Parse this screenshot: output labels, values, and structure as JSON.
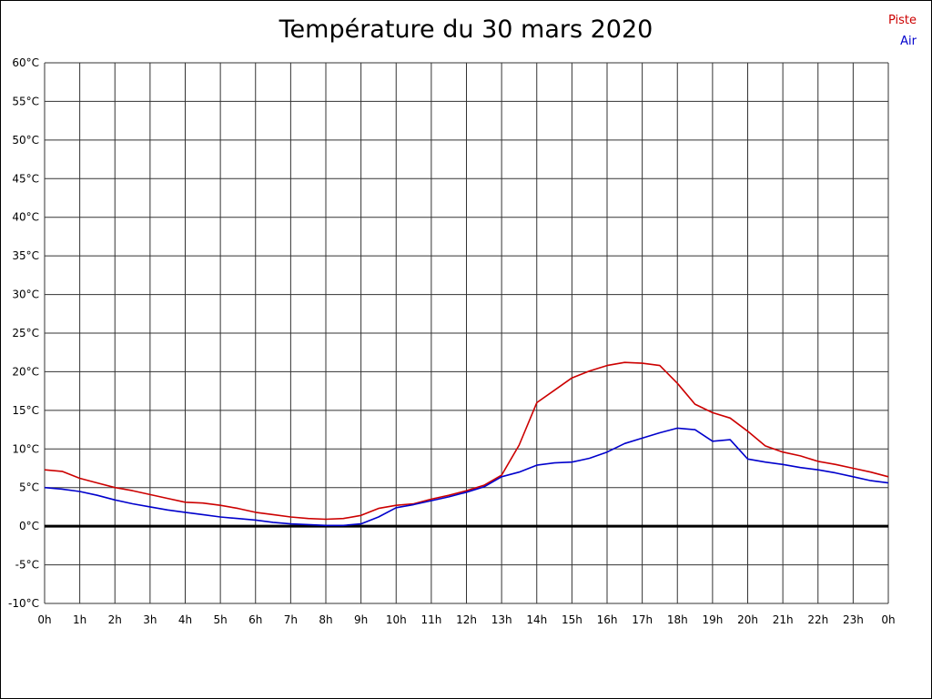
{
  "chart_data": {
    "type": "line",
    "title": "Température du 30 mars 2020",
    "xlabel": "",
    "ylabel": "",
    "x_unit": "h",
    "x_range": [
      0,
      24
    ],
    "x_tick_step": 1,
    "x_tick_labels": [
      "0h",
      "1h",
      "2h",
      "3h",
      "4h",
      "5h",
      "6h",
      "7h",
      "8h",
      "9h",
      "10h",
      "11h",
      "12h",
      "13h",
      "14h",
      "15h",
      "16h",
      "17h",
      "18h",
      "19h",
      "20h",
      "21h",
      "22h",
      "23h",
      "0h"
    ],
    "y_range": [
      -10,
      60
    ],
    "y_tick_step": 5,
    "y_tick_labels": [
      "60°C",
      "55°C",
      "50°C",
      "45°C",
      "40°C",
      "35°C",
      "30°C",
      "25°C",
      "20°C",
      "15°C",
      "10°C",
      "5°C",
      "0°C",
      "-5°C",
      "-10°C"
    ],
    "grid": true,
    "zero_line_value": 0,
    "legend_position": "top-right",
    "colors": {
      "grid": "#333333",
      "zero_line": "#000000",
      "background": "#ffffff",
      "frame": "#000000",
      "piste": "#cc0000",
      "air": "#0000cc"
    },
    "x": [
      0,
      0.5,
      1,
      1.5,
      2,
      2.5,
      3,
      3.5,
      4,
      4.5,
      5,
      5.5,
      6,
      6.5,
      7,
      7.5,
      8,
      8.5,
      9,
      9.5,
      10,
      10.5,
      11,
      11.5,
      12,
      12.5,
      13,
      13.5,
      14,
      14.5,
      15,
      15.5,
      16,
      16.5,
      17,
      17.5,
      18,
      18.5,
      19,
      19.5,
      20,
      20.5,
      21,
      21.5,
      22,
      22.5,
      23,
      23.5,
      24
    ],
    "series": [
      {
        "name": "Piste",
        "color": "#cc0000",
        "values": [
          7.3,
          7.1,
          6.2,
          5.6,
          5.0,
          4.6,
          4.1,
          3.6,
          3.1,
          3.0,
          2.7,
          2.3,
          1.8,
          1.5,
          1.2,
          1.0,
          0.9,
          1.0,
          1.4,
          2.3,
          2.7,
          2.9,
          3.5,
          4.0,
          4.6,
          5.3,
          6.6,
          10.5,
          16.0,
          17.6,
          19.2,
          20.1,
          20.8,
          21.2,
          21.1,
          20.8,
          18.5,
          15.8,
          14.7,
          14.0,
          12.3,
          10.4,
          9.6,
          9.1,
          8.4,
          8.0,
          7.5,
          7.0,
          6.4
        ]
      },
      {
        "name": "Air",
        "color": "#0000cc",
        "values": [
          5.0,
          4.8,
          4.5,
          4.0,
          3.4,
          2.9,
          2.5,
          2.1,
          1.8,
          1.5,
          1.2,
          1.0,
          0.8,
          0.5,
          0.3,
          0.2,
          0.1,
          0.1,
          0.3,
          1.2,
          2.4,
          2.8,
          3.3,
          3.8,
          4.4,
          5.1,
          6.4,
          7.0,
          7.9,
          8.2,
          8.3,
          8.8,
          9.6,
          10.7,
          11.4,
          12.1,
          12.7,
          12.5,
          11.0,
          11.2,
          8.7,
          8.3,
          8.0,
          7.6,
          7.3,
          6.9,
          6.4,
          5.9,
          5.6
        ]
      }
    ]
  }
}
